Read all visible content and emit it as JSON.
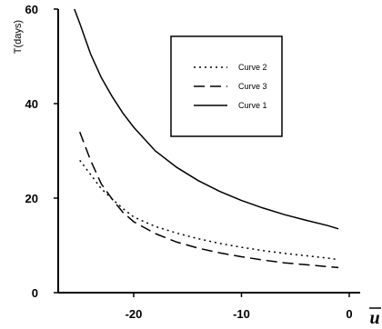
{
  "chart_data": {
    "type": "line",
    "ylabel": "T(days)",
    "xlabel": "u",
    "xlim": [
      -27,
      0
    ],
    "ylim": [
      0,
      60
    ],
    "x_ticks": [
      -20,
      -10,
      0
    ],
    "y_ticks": [
      0,
      20,
      40,
      60
    ],
    "grid": false,
    "legend_position": "top-right",
    "series": [
      {
        "name": "Curve 2",
        "style": "dotted",
        "color": "#000000",
        "x": [
          -25,
          -24,
          -23,
          -22,
          -21,
          -20,
          -18,
          -16,
          -14,
          -12,
          -10,
          -8,
          -6,
          -4,
          -2,
          -1
        ],
        "y": [
          28.0,
          25.0,
          22.0,
          19.8,
          17.8,
          16.0,
          14.0,
          12.6,
          11.4,
          10.4,
          9.6,
          8.9,
          8.3,
          7.8,
          7.3,
          7.0
        ]
      },
      {
        "name": "Curve 3",
        "style": "dashed",
        "color": "#000000",
        "x": [
          -25,
          -24,
          -23,
          -22,
          -21,
          -20,
          -18,
          -16,
          -14,
          -12,
          -10,
          -8,
          -6,
          -4,
          -2,
          -1
        ],
        "y": [
          34.0,
          28.0,
          23.0,
          19.8,
          17.0,
          15.0,
          12.5,
          10.7,
          9.4,
          8.4,
          7.6,
          6.9,
          6.3,
          5.9,
          5.5,
          5.3
        ]
      },
      {
        "name": "Curve 1",
        "style": "solid",
        "color": "#000000",
        "x": [
          -25.5,
          -25,
          -24,
          -23,
          -22,
          -21,
          -20,
          -18,
          -16,
          -14,
          -12,
          -10,
          -8,
          -6,
          -4,
          -2,
          -1
        ],
        "y": [
          60.0,
          57.0,
          50.5,
          45.5,
          41.5,
          38.0,
          35.0,
          30.0,
          26.5,
          23.7,
          21.4,
          19.5,
          17.9,
          16.5,
          15.3,
          14.2,
          13.5
        ]
      }
    ]
  }
}
